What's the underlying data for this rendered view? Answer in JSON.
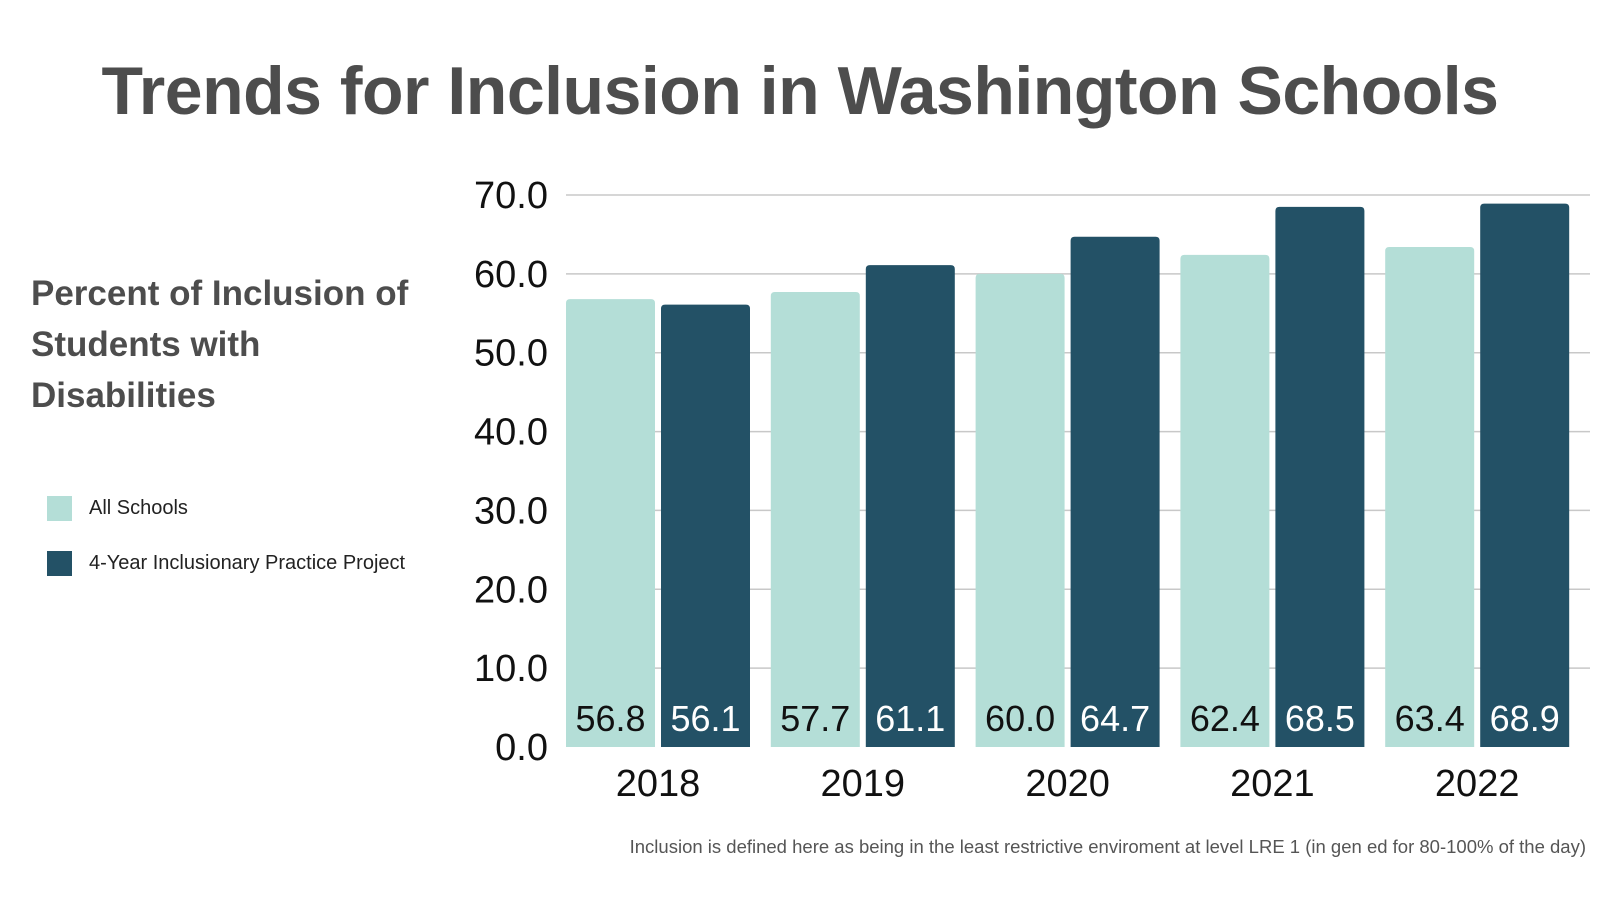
{
  "title": "Trends for Inclusion in Washington Schools",
  "subtitle": "Percent of Inclusion of Students with Disabilities",
  "footnote": "Inclusion is defined here as being in the least restrictive enviroment at level LRE 1 (in gen ed for 80-100% of the day)",
  "legend": {
    "items": [
      {
        "label": "All Schools",
        "color": "#b4ded7"
      },
      {
        "label": "4-Year Inclusionary Practice Project",
        "color": "#235166"
      }
    ]
  },
  "colors": {
    "all_schools": "#b4ded7",
    "project": "#235166",
    "grid": "#c8c8c8",
    "text": "#111111"
  },
  "chart_data": {
    "type": "bar",
    "title": "Trends for Inclusion in Washington Schools",
    "xlabel": "",
    "ylabel": "Percent of Inclusion of Students with Disabilities",
    "categories": [
      "2018",
      "2019",
      "2020",
      "2021",
      "2022"
    ],
    "series": [
      {
        "name": "All Schools",
        "values": [
          56.8,
          57.7,
          60.0,
          62.4,
          63.4
        ]
      },
      {
        "name": "4-Year Inclusionary Practice Project",
        "values": [
          56.1,
          61.1,
          64.7,
          68.5,
          68.9
        ]
      }
    ],
    "ylim": [
      0,
      70
    ],
    "yticks": [
      "0.0",
      "10.0",
      "20.0",
      "30.0",
      "40.0",
      "50.0",
      "60.0",
      "70.0"
    ],
    "value_labels": [
      [
        "56.8",
        "57.7",
        "60.0",
        "62.4",
        "63.4"
      ],
      [
        "56.1",
        "61.1",
        "64.7",
        "68.5",
        "68.9"
      ]
    ],
    "grid": true,
    "legend_position": "left"
  }
}
